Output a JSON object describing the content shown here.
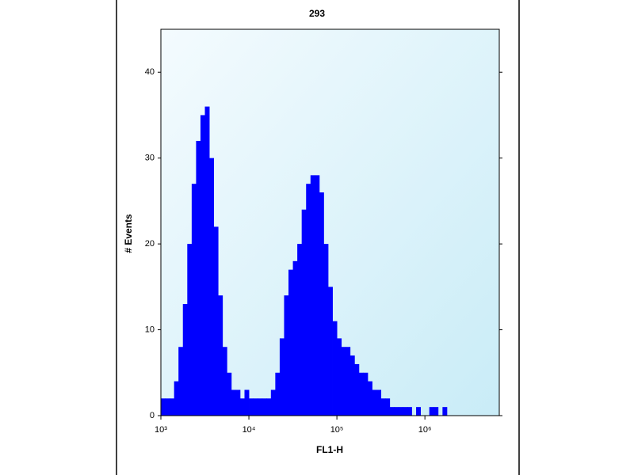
{
  "chart_data": {
    "type": "histogram",
    "title": "293",
    "x_label": "FL1-H",
    "y_label": "# Events",
    "xlog": true,
    "color": "#0000ff",
    "bins": [
      1000,
      1122,
      1259,
      1413,
      1585,
      1778,
      1995,
      2239,
      2512,
      2818,
      3162,
      3548,
      3981,
      4467,
      5012,
      5623,
      6310,
      7079,
      7943,
      8913,
      10000,
      11220,
      12589,
      14125,
      15849,
      17783,
      19953,
      22387,
      25119,
      28184,
      31623,
      35481,
      39811,
      44668,
      50119,
      56234,
      63096,
      70795,
      79433,
      89125,
      100000,
      112202,
      125893,
      141254,
      158489,
      177828,
      199526,
      223872,
      251189,
      281838,
      316228,
      354813,
      398107,
      446684,
      501187,
      562341,
      630957,
      707946,
      794328,
      891251,
      1000000,
      1122018,
      1258925,
      1412538,
      1584893,
      1778279,
      1995262,
      2238721,
      2511886,
      2818383,
      3162278,
      3548134,
      3981072,
      4466836,
      5011872,
      5623413,
      6309573
    ],
    "values": [
      2,
      2,
      2,
      4,
      8,
      13,
      20,
      27,
      32,
      35,
      36,
      30,
      22,
      14,
      8,
      5,
      3,
      3,
      2,
      3,
      2,
      2,
      2,
      2,
      2,
      3,
      5,
      9,
      14,
      17,
      18,
      20,
      24,
      27,
      28,
      28,
      26,
      20,
      15,
      11,
      9,
      8,
      8,
      7,
      6,
      5,
      5,
      4,
      3,
      3,
      2,
      2,
      1,
      1,
      1,
      1,
      1,
      0,
      1,
      0,
      0,
      1,
      1,
      0,
      1,
      0,
      0,
      0,
      0,
      0,
      0,
      0,
      0,
      0,
      0,
      0
    ],
    "xlim": [
      1000,
      7000000
    ],
    "ylim": [
      0,
      45
    ],
    "xticks": [
      {
        "value": 1000,
        "label": "10³"
      },
      {
        "value": 10000,
        "label": "10⁴"
      },
      {
        "value": 100000,
        "label": "10⁵"
      },
      {
        "value": 1000000,
        "label": "10⁶"
      }
    ],
    "yticks": [
      0,
      10,
      20,
      30,
      40
    ]
  }
}
